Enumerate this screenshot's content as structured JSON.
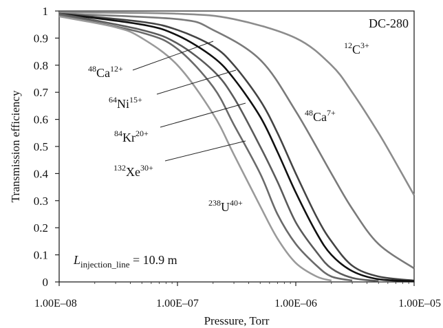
{
  "chart_data": {
    "type": "line",
    "title": "",
    "xlabel": "Pressure, Torr",
    "ylabel": "Transmission efficiency",
    "x_scale": "log",
    "xlim": [
      1e-08,
      1e-05
    ],
    "ylim": [
      0,
      1
    ],
    "x_tick_values": [
      1e-08,
      1e-07,
      1e-06,
      1e-05
    ],
    "x_tick_labels": [
      "1.00E–08",
      "1.00E–07",
      "1.00E–06",
      "1.00E–05"
    ],
    "y_tick_values": [
      0,
      0.1,
      0.2,
      0.3,
      0.4,
      0.5,
      0.6,
      0.7,
      0.8,
      0.9,
      1
    ],
    "y_tick_labels": [
      "0",
      "0.1",
      "0.2",
      "0.3",
      "0.4",
      "0.5",
      "0.6",
      "0.7",
      "0.8",
      "0.9",
      "1"
    ],
    "grid": false,
    "annotations": {
      "machine": "DC-280",
      "injection_line": {
        "symbol": "L",
        "subscript": "injection_line",
        "value": " = 10.9 m"
      }
    },
    "series": [
      {
        "label": {
          "mass": "12",
          "element": "C",
          "charge": "3+"
        },
        "color": "#8c8c8c",
        "x": [
          1e-08,
          1e-07,
          3e-07,
          1e-06,
          2e-06,
          3e-06,
          5e-06,
          7e-06,
          1e-05
        ],
        "y": [
          0.995,
          0.99,
          0.97,
          0.9,
          0.8,
          0.7,
          0.55,
          0.44,
          0.32
        ]
      },
      {
        "label": {
          "mass": "48",
          "element": "Ca",
          "charge": "7+"
        },
        "color": "#7a7a7a",
        "x": [
          1e-08,
          1e-07,
          2e-07,
          5e-07,
          1e-06,
          2e-06,
          3e-06,
          5e-06,
          1e-05
        ],
        "y": [
          0.99,
          0.97,
          0.93,
          0.82,
          0.63,
          0.4,
          0.27,
          0.14,
          0.05
        ]
      },
      {
        "label": {
          "mass": "48",
          "element": "Ca",
          "charge": "12+"
        },
        "color": "#444444",
        "x": [
          1e-08,
          5e-08,
          1e-07,
          2e-07,
          3e-07,
          5e-07,
          7e-07,
          1e-06,
          1.5e-06,
          2e-06,
          3e-06,
          5e-06,
          1e-05
        ],
        "y": [
          0.99,
          0.96,
          0.93,
          0.87,
          0.8,
          0.67,
          0.55,
          0.4,
          0.24,
          0.15,
          0.06,
          0.02,
          0.005
        ]
      },
      {
        "label": {
          "mass": "64",
          "element": "Ni",
          "charge": "15+"
        },
        "color": "#111111",
        "x": [
          1e-08,
          5e-08,
          1e-07,
          2e-07,
          3e-07,
          5e-07,
          7e-07,
          1e-06,
          1.5e-06,
          2e-06,
          3e-06,
          5e-06,
          1e-05
        ],
        "y": [
          0.99,
          0.95,
          0.91,
          0.83,
          0.75,
          0.61,
          0.48,
          0.33,
          0.18,
          0.1,
          0.04,
          0.01,
          0.003
        ]
      },
      {
        "label": {
          "mass": "84",
          "element": "Kr",
          "charge": "20+"
        },
        "color": "#5a5a5a",
        "x": [
          1e-08,
          5e-08,
          1e-07,
          2e-07,
          3e-07,
          5e-07,
          7e-07,
          1e-06,
          1.5e-06,
          2e-06,
          3e-06,
          5e-06
        ],
        "y": [
          0.99,
          0.93,
          0.88,
          0.78,
          0.68,
          0.5,
          0.37,
          0.22,
          0.11,
          0.05,
          0.015,
          0.003
        ]
      },
      {
        "label": {
          "mass": "132",
          "element": "Xe",
          "charge": "30+"
        },
        "color": "#6a6a6a",
        "x": [
          1e-08,
          5e-08,
          1e-07,
          2e-07,
          3e-07,
          5e-07,
          7e-07,
          1e-06,
          1.5e-06,
          2e-06,
          3e-06
        ],
        "y": [
          0.985,
          0.92,
          0.86,
          0.72,
          0.58,
          0.4,
          0.25,
          0.14,
          0.06,
          0.02,
          0.005
        ]
      },
      {
        "label": {
          "mass": "238",
          "element": "U",
          "charge": "40+"
        },
        "color": "#9a9a9a",
        "x": [
          1e-08,
          3e-08,
          5e-08,
          1e-07,
          2e-07,
          3e-07,
          5e-07,
          7e-07,
          1e-06,
          1.5e-06,
          2e-06
        ],
        "y": [
          0.98,
          0.94,
          0.9,
          0.8,
          0.62,
          0.47,
          0.28,
          0.16,
          0.07,
          0.02,
          0.005
        ]
      }
    ]
  }
}
